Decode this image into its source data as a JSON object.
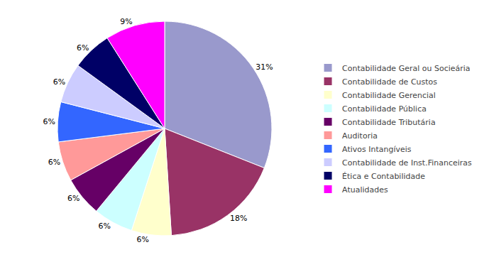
{
  "chart_data": {
    "type": "pie",
    "categories": [
      "Contabilidade Geral ou Socieária",
      "Contabilidade de Custos",
      "Contabilidade Gerencial",
      "Contabilidade Pública",
      "Contabilidade Tributária",
      "Auditoria",
      "Ativos Intangíveis",
      "Contabilidade de Inst.Financeiras",
      "Ética e Contabilidade",
      "Atualidades"
    ],
    "values": [
      31,
      18,
      6,
      6,
      6,
      6,
      6,
      6,
      6,
      9
    ],
    "value_labels": [
      "31%",
      "18%",
      "6%",
      "6%",
      "6%",
      "6%",
      "6%",
      "6%",
      "6%",
      "9%"
    ],
    "colors": [
      "#9999CC",
      "#993366",
      "#FFFFCC",
      "#CCFFFF",
      "#660066",
      "#FF9999",
      "#3366FF",
      "#CCCCFF",
      "#000066",
      "#FF00FF"
    ],
    "data_labels": true,
    "legend": "right"
  }
}
